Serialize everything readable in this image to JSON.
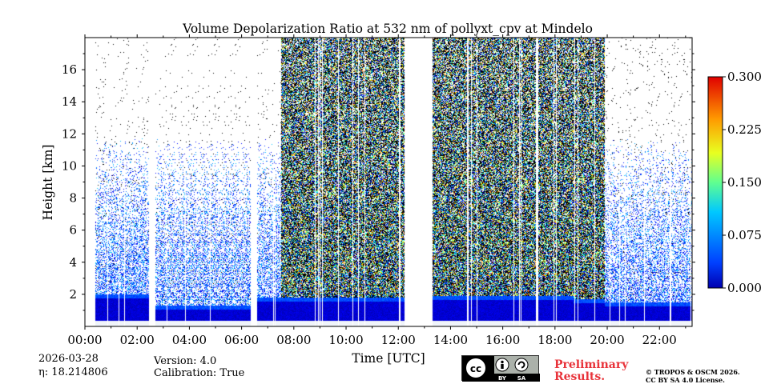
{
  "chart_data": {
    "type": "heatmap",
    "title": "Volume Depolarization Ratio at 532 nm of pollyxt_cpv at Mindelo",
    "xlabel": "Time [UTC]",
    "ylabel": "Height [km]",
    "xlim": [
      0,
      23.25
    ],
    "ylim": [
      0,
      18
    ],
    "x_ticks": [
      0,
      2,
      4,
      6,
      8,
      10,
      12,
      14,
      16,
      18,
      20,
      22
    ],
    "x_tick_labels": [
      "00:00",
      "02:00",
      "04:00",
      "06:00",
      "08:00",
      "10:00",
      "12:00",
      "14:00",
      "16:00",
      "18:00",
      "20:00",
      "22:00"
    ],
    "y_ticks": [
      2,
      4,
      6,
      8,
      10,
      12,
      14,
      16
    ],
    "y_tick_labels": [
      "2",
      "4",
      "6",
      "8",
      "10",
      "12",
      "14",
      "16"
    ],
    "colorbar": {
      "min": 0.0,
      "max": 0.3,
      "ticks": [
        0.0,
        0.075,
        0.15,
        0.225,
        0.3
      ],
      "tick_labels": [
        "0.000",
        "0.075",
        "0.150",
        "0.225",
        "0.300"
      ],
      "colormap": "jet"
    },
    "data_gaps_hours": [
      [
        0.0,
        0.4
      ],
      [
        2.45,
        2.7
      ],
      [
        6.35,
        6.55
      ],
      [
        12.25,
        13.3
      ]
    ],
    "regimes": [
      {
        "start": 0.4,
        "end": 2.45,
        "boundary_layer_top_km": 2.0,
        "noise_density": 0.25
      },
      {
        "start": 2.7,
        "end": 6.35,
        "boundary_layer_top_km": 1.3,
        "noise_density": 0.2
      },
      {
        "start": 6.55,
        "end": 7.5,
        "boundary_layer_top_km": 1.8,
        "noise_density": 0.2
      },
      {
        "start": 7.5,
        "end": 12.25,
        "boundary_layer_top_km": 1.8,
        "noise_density": 0.8
      },
      {
        "start": 13.3,
        "end": 18.7,
        "boundary_layer_top_km": 1.9,
        "noise_density": 0.55
      },
      {
        "start": 18.7,
        "end": 19.9,
        "boundary_layer_top_km": 1.7,
        "noise_density": 0.8
      },
      {
        "start": 19.9,
        "end": 23.25,
        "boundary_layer_top_km": 1.5,
        "noise_density": 0.25
      }
    ]
  },
  "footer": {
    "date": "2026-03-28",
    "eta_label": "η: 18.214806",
    "version": "Version: 4.0",
    "calibration": "Calibration: True",
    "cc_labels": [
      "BY",
      "SA"
    ],
    "prelim_line1": "Preliminary",
    "prelim_line2": "Results.",
    "license_line1": "© TROPOS & OSCM 2026.",
    "license_line2": "CC BY SA 4.0 License."
  }
}
